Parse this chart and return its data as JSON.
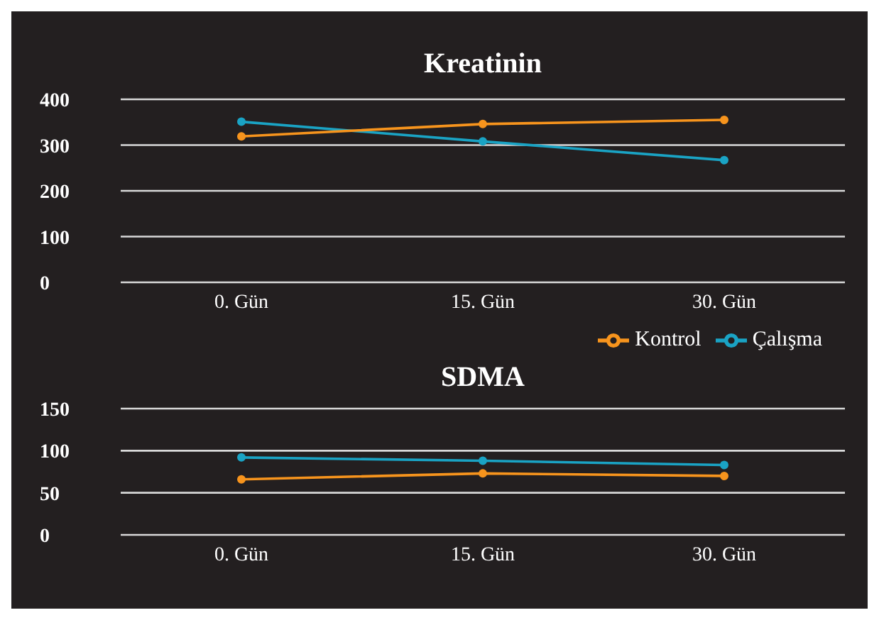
{
  "chart_data": [
    {
      "type": "line",
      "title": "Kreatinin",
      "categories": [
        "0. Gün",
        "15. Gün",
        "30. Gün"
      ],
      "series": [
        {
          "name": "Çalışma",
          "color": "#1aa3c4",
          "values": [
            351,
            308,
            267
          ]
        },
        {
          "name": "Kontrol",
          "color": "#f7941d",
          "values": [
            319,
            346,
            355
          ]
        }
      ],
      "ylim": [
        0,
        400
      ],
      "yticks": [
        0,
        100,
        200,
        300,
        400
      ],
      "grid": "y",
      "legend": "bottom right",
      "marker": "circle",
      "line_style": "solid"
    },
    {
      "type": "line",
      "title": "SDMA",
      "categories": [
        "0. Gün",
        "15. Gün",
        "30. Gün"
      ],
      "series": [
        {
          "color": "#1aa3c4",
          "values": [
            92,
            88,
            83
          ]
        },
        {
          "color": "#f7941d",
          "values": [
            66,
            73,
            70
          ]
        }
      ],
      "ylim": [
        0,
        150
      ],
      "yticks": [
        0,
        50,
        100,
        150
      ],
      "grid": "y",
      "marker": "circle",
      "line_style": "solid"
    }
  ]
}
